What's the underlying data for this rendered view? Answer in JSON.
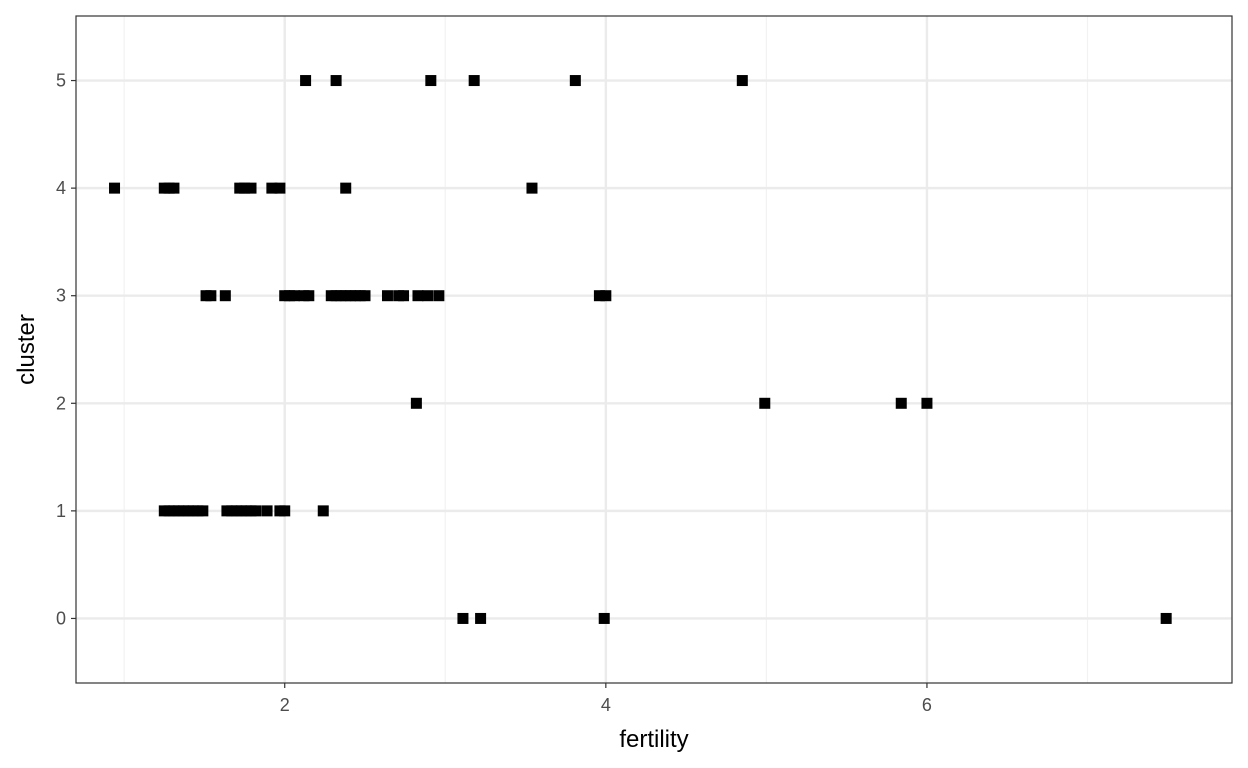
{
  "chart_data": {
    "type": "scatter",
    "xlabel": "fertility",
    "ylabel": "cluster",
    "xlim": [
      0.7,
      7.9
    ],
    "ylim": [
      -0.6,
      5.6
    ],
    "x_ticks_major": [
      2,
      4,
      6
    ],
    "x_ticks_minor": [
      1,
      3,
      5,
      7
    ],
    "y_ticks_major": [
      0,
      1,
      2,
      3,
      4,
      5
    ],
    "x_tick_labels": [
      "2",
      "4",
      "6"
    ],
    "y_tick_labels": [
      "0",
      "1",
      "2",
      "3",
      "4",
      "5"
    ],
    "grid": true,
    "theme": "bw",
    "marker": "square",
    "colors": {
      "point": "#000000",
      "major_grid": "#ebebeb",
      "minor_grid": "#f2f2f2",
      "panel_border": "#333333",
      "tick_label": "#4d4d4d"
    },
    "points": [
      {
        "x": 7.49,
        "y": 0
      },
      {
        "x": 3.11,
        "y": 0
      },
      {
        "x": 3.22,
        "y": 0
      },
      {
        "x": 3.99,
        "y": 0
      },
      {
        "x": 1.25,
        "y": 1
      },
      {
        "x": 1.28,
        "y": 1
      },
      {
        "x": 1.31,
        "y": 1
      },
      {
        "x": 1.34,
        "y": 1
      },
      {
        "x": 1.37,
        "y": 1
      },
      {
        "x": 1.4,
        "y": 1
      },
      {
        "x": 1.43,
        "y": 1
      },
      {
        "x": 1.46,
        "y": 1
      },
      {
        "x": 1.49,
        "y": 1
      },
      {
        "x": 1.64,
        "y": 1
      },
      {
        "x": 1.67,
        "y": 1
      },
      {
        "x": 1.7,
        "y": 1
      },
      {
        "x": 1.73,
        "y": 1
      },
      {
        "x": 1.76,
        "y": 1
      },
      {
        "x": 1.79,
        "y": 1
      },
      {
        "x": 1.82,
        "y": 1
      },
      {
        "x": 1.89,
        "y": 1
      },
      {
        "x": 1.97,
        "y": 1
      },
      {
        "x": 2.0,
        "y": 1
      },
      {
        "x": 2.24,
        "y": 1
      },
      {
        "x": 2.82,
        "y": 2
      },
      {
        "x": 4.99,
        "y": 2
      },
      {
        "x": 5.84,
        "y": 2
      },
      {
        "x": 6.0,
        "y": 2
      },
      {
        "x": 1.51,
        "y": 3
      },
      {
        "x": 1.54,
        "y": 3
      },
      {
        "x": 1.63,
        "y": 3
      },
      {
        "x": 2.0,
        "y": 3
      },
      {
        "x": 2.03,
        "y": 3
      },
      {
        "x": 2.06,
        "y": 3
      },
      {
        "x": 2.12,
        "y": 3
      },
      {
        "x": 2.15,
        "y": 3
      },
      {
        "x": 2.29,
        "y": 3
      },
      {
        "x": 2.32,
        "y": 3
      },
      {
        "x": 2.35,
        "y": 3
      },
      {
        "x": 2.38,
        "y": 3
      },
      {
        "x": 2.41,
        "y": 3
      },
      {
        "x": 2.44,
        "y": 3
      },
      {
        "x": 2.47,
        "y": 3
      },
      {
        "x": 2.5,
        "y": 3
      },
      {
        "x": 2.64,
        "y": 3
      },
      {
        "x": 2.71,
        "y": 3
      },
      {
        "x": 2.74,
        "y": 3
      },
      {
        "x": 2.83,
        "y": 3
      },
      {
        "x": 2.89,
        "y": 3
      },
      {
        "x": 2.96,
        "y": 3
      },
      {
        "x": 3.96,
        "y": 3
      },
      {
        "x": 4.0,
        "y": 3
      },
      {
        "x": 0.94,
        "y": 4
      },
      {
        "x": 1.25,
        "y": 4
      },
      {
        "x": 1.28,
        "y": 4
      },
      {
        "x": 1.31,
        "y": 4
      },
      {
        "x": 1.72,
        "y": 4
      },
      {
        "x": 1.75,
        "y": 4
      },
      {
        "x": 1.79,
        "y": 4
      },
      {
        "x": 1.92,
        "y": 4
      },
      {
        "x": 1.97,
        "y": 4
      },
      {
        "x": 2.38,
        "y": 4
      },
      {
        "x": 3.54,
        "y": 4
      },
      {
        "x": 2.13,
        "y": 5
      },
      {
        "x": 2.32,
        "y": 5
      },
      {
        "x": 2.91,
        "y": 5
      },
      {
        "x": 3.18,
        "y": 5
      },
      {
        "x": 3.81,
        "y": 5
      },
      {
        "x": 4.85,
        "y": 5
      }
    ]
  }
}
